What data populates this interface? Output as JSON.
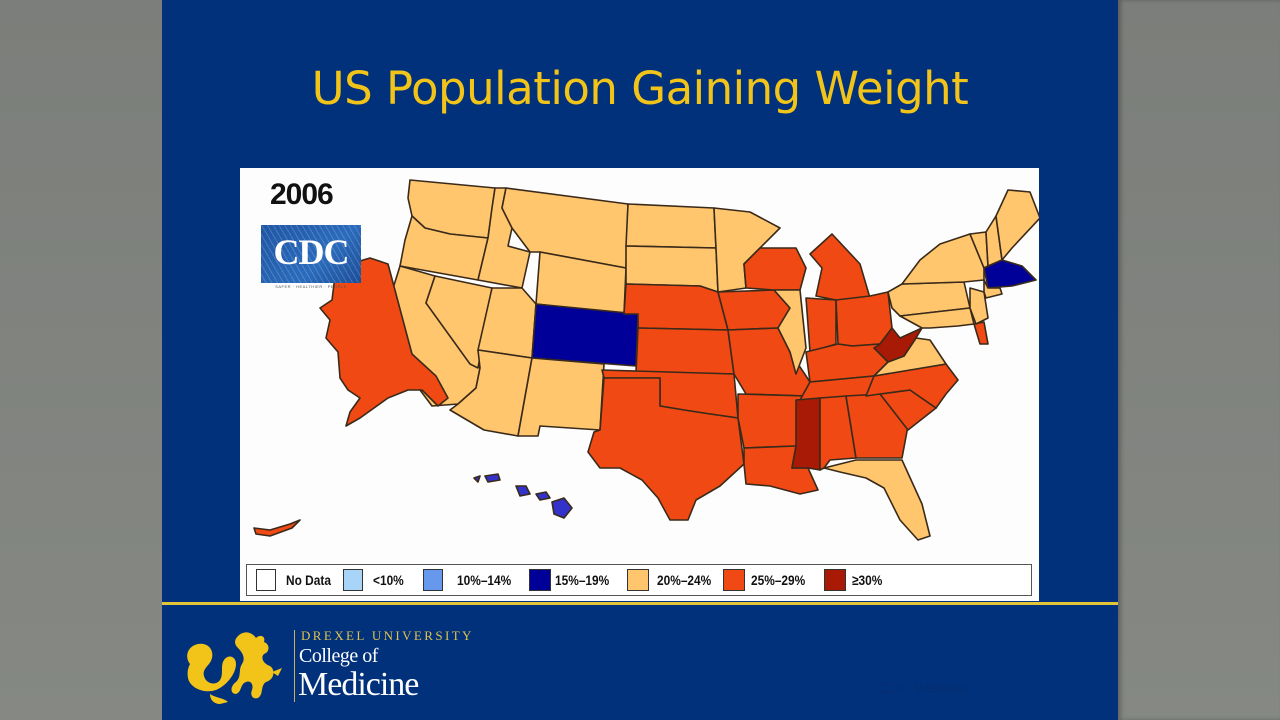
{
  "slide": {
    "title": "US Population Gaining Weight",
    "source_note": "CDC Website"
  },
  "map": {
    "year": "2006",
    "logo_text": "CDC",
    "logo_tagline": "SAFER · HEALTHIER · PEOPLE",
    "colors": {
      "no_data": "#ffffff",
      "lt10": "#99ccff",
      "p10_14": "#6699ee",
      "p15_19": "#000099",
      "p20_24": "#ffc66e",
      "p25_29": "#f04914",
      "ge30": "#a81a06",
      "hawaii": "#3333cc"
    },
    "legend": [
      {
        "label": "No Data",
        "color": "#ffffff"
      },
      {
        "label": "<10%",
        "color": "#a8d4f8"
      },
      {
        "label": "10%–14%",
        "color": "#6699ee"
      },
      {
        "label": "15%–19%",
        "color": "#000099"
      },
      {
        "label": "20%–24%",
        "color": "#ffc66e"
      },
      {
        "label": "25%–29%",
        "color": "#f04914"
      },
      {
        "label": "≥30%",
        "color": "#a81a06"
      }
    ]
  },
  "footer": {
    "university": "DREXEL UNIVERSITY",
    "college_line1": "College of",
    "college_line2": "Medicine",
    "accent": "#f2c318"
  }
}
